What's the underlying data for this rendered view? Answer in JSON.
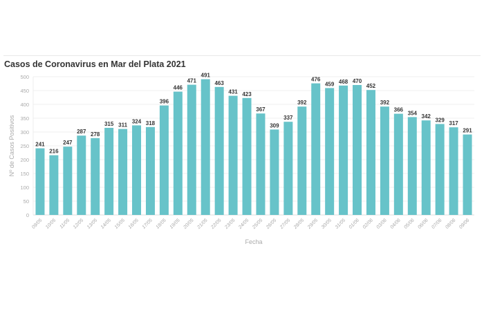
{
  "chart_data": {
    "type": "bar",
    "title": "Casos de Coronavirus en Mar del Plata 2021",
    "xlabel": "Fecha",
    "ylabel": "Nº de Casos Positivos",
    "ylim": [
      0,
      500
    ],
    "yticks": [
      0,
      50,
      100,
      150,
      200,
      250,
      300,
      350,
      400,
      450,
      500
    ],
    "grid": true,
    "bar_color": "#67c3c9",
    "categories": [
      "09/05",
      "10/05",
      "11/05",
      "12/05",
      "13/05",
      "14/05",
      "15/05",
      "16/05",
      "17/05",
      "18/05",
      "19/05",
      "20/05",
      "21/05",
      "22/05",
      "23/05",
      "24/05",
      "25/05",
      "26/05",
      "27/05",
      "28/05",
      "29/05",
      "30/05",
      "31/05",
      "01/06",
      "02/06",
      "03/06",
      "04/06",
      "05/06",
      "06/06",
      "07/06",
      "08/06",
      "09/06"
    ],
    "values": [
      241,
      216,
      247,
      287,
      278,
      315,
      311,
      324,
      318,
      396,
      446,
      471,
      491,
      463,
      431,
      423,
      367,
      309,
      337,
      392,
      476,
      459,
      468,
      470,
      452,
      392,
      366,
      354,
      342,
      329,
      317,
      291
    ]
  }
}
